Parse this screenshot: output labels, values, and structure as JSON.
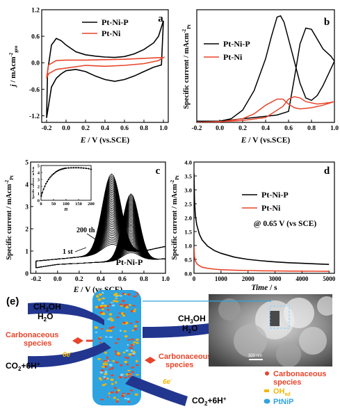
{
  "chart_data": [
    {
      "panel": "a",
      "type": "line",
      "xlabel_parts": [
        "E",
        " / V (vs.SCE)"
      ],
      "ylabel_parts": [
        "j",
        " / mAcm",
        "-2",
        "geo"
      ],
      "xlim": [
        -0.25,
        1.05
      ],
      "ylim": [
        -1.35,
        1.2
      ],
      "xticks": [
        "-0.2",
        "0.0",
        "0.2",
        "0.4",
        "0.6",
        "0.8",
        "1.0"
      ],
      "yticks": [
        "-1.2",
        "-0.6",
        "0.0",
        "0.6",
        "1.2"
      ],
      "ytick_values": [
        -1.2,
        -0.6,
        0.0,
        0.6,
        1.2
      ],
      "legend_position": "top-right",
      "series": [
        {
          "name": "Pt-Ni-P",
          "color": "#000000",
          "x": [
            -0.2,
            -0.19,
            -0.15,
            -0.1,
            -0.05,
            0.0,
            0.1,
            0.2,
            0.3,
            0.4,
            0.5,
            0.6,
            0.7,
            0.8,
            0.9,
            0.95,
            1.0,
            0.98,
            0.9,
            0.8,
            0.7,
            0.6,
            0.5,
            0.4,
            0.3,
            0.2,
            0.1,
            0.0,
            -0.05,
            -0.1,
            -0.15,
            -0.2
          ],
          "y": [
            -1.25,
            -0.2,
            0.4,
            0.55,
            0.5,
            0.4,
            0.25,
            0.18,
            0.15,
            0.13,
            0.12,
            0.14,
            0.2,
            0.3,
            0.45,
            0.6,
            0.95,
            -0.05,
            -0.1,
            -0.2,
            -0.3,
            -0.38,
            -0.42,
            -0.38,
            -0.3,
            -0.2,
            -0.15,
            -0.18,
            -0.25,
            -0.35,
            -0.55,
            -1.25
          ]
        },
        {
          "name": "Pt-Ni",
          "color": "#e8442a",
          "x": [
            -0.2,
            -0.18,
            -0.1,
            0.0,
            0.2,
            0.4,
            0.6,
            0.8,
            1.0,
            0.95,
            0.8,
            0.6,
            0.4,
            0.2,
            0.0,
            -0.1,
            -0.18,
            -0.2
          ],
          "y": [
            -0.35,
            -0.05,
            0.05,
            0.06,
            0.06,
            0.07,
            0.08,
            0.1,
            0.12,
            0.05,
            -0.02,
            -0.06,
            -0.08,
            -0.06,
            -0.12,
            -0.15,
            -0.25,
            -0.35
          ]
        }
      ]
    },
    {
      "panel": "b",
      "type": "line",
      "xlabel_parts": [
        "E",
        " / V (vs.SCE)"
      ],
      "ylabel_parts": [
        "Specific current / mAcm",
        "-2",
        "Pt"
      ],
      "xlim": [
        -0.2,
        1.0
      ],
      "ylim": [
        0,
        4.6
      ],
      "xticks": [
        "-0.2",
        "0.0",
        "0.2",
        "0.4",
        "0.6",
        "0.8",
        "1.0"
      ],
      "legend_position": "top-left",
      "series": [
        {
          "name": "Pt-Ni-P",
          "color": "#000000",
          "x": [
            -0.2,
            0.0,
            0.1,
            0.2,
            0.3,
            0.4,
            0.45,
            0.5,
            0.53,
            0.56,
            0.6,
            0.65,
            0.7,
            0.75,
            0.8,
            0.85,
            0.9,
            0.95,
            1.0,
            0.97,
            0.9,
            0.8,
            0.75,
            0.7,
            0.65,
            0.6,
            0.5,
            0.4,
            0.3,
            0.2,
            0.1,
            0.0,
            -0.1,
            -0.2
          ],
          "y": [
            0.05,
            0.05,
            0.15,
            0.5,
            1.3,
            2.6,
            3.5,
            4.3,
            4.35,
            4.1,
            3.4,
            2.5,
            1.6,
            1.0,
            0.9,
            1.1,
            1.5,
            2.0,
            2.5,
            2.7,
            3.0,
            3.8,
            3.85,
            3.2,
            1.8,
            0.45,
            0.3,
            0.25,
            0.2,
            0.15,
            0.1,
            0.05,
            0.05,
            0.05
          ]
        },
        {
          "name": "Pt-Ni",
          "color": "#e8442a",
          "x": [
            -0.2,
            0.0,
            0.2,
            0.3,
            0.4,
            0.5,
            0.55,
            0.6,
            0.65,
            0.7,
            0.8,
            0.9,
            1.0,
            0.95,
            0.85,
            0.75,
            0.7,
            0.65,
            0.6,
            0.55,
            0.4,
            0.2,
            0.0,
            -0.2
          ],
          "y": [
            0.0,
            0.02,
            0.15,
            0.35,
            0.7,
            0.95,
            0.95,
            0.75,
            0.6,
            0.55,
            0.6,
            0.7,
            0.85,
            0.8,
            0.75,
            0.85,
            1.0,
            1.05,
            0.95,
            0.65,
            0.2,
            0.08,
            0.03,
            0.0
          ]
        }
      ]
    },
    {
      "panel": "c",
      "type": "line",
      "xlabel_parts": [
        "E",
        " / V (vs.SCE)"
      ],
      "ylabel_parts": [
        "Specific current / mAcm",
        "-2",
        "Pt"
      ],
      "xlim": [
        -0.25,
        1.0
      ],
      "ylim": [
        0,
        5
      ],
      "xticks": [
        "-0.2",
        "0.0",
        "0.2",
        "0.4",
        "0.6",
        "0.8",
        "1.0"
      ],
      "yticks": [
        "0",
        "1",
        "2",
        "3",
        "4",
        "5"
      ],
      "label_text": "Pt-Ni-P",
      "annotations": [
        "200 th",
        "1 st"
      ],
      "inset": {
        "xlabel": "n",
        "ylabel": "Specific current / mAcm",
        "xlim": [
          0,
          200
        ],
        "ylim": [
          0,
          5
        ],
        "xticks": [
          "0",
          "50",
          "100",
          "150",
          "200"
        ],
        "yticks": [
          "0",
          "1",
          "2",
          "3",
          "4",
          "5"
        ],
        "x": [
          1,
          5,
          10,
          15,
          20,
          25,
          30,
          35,
          40,
          45,
          50,
          55,
          60,
          65,
          70,
          75,
          80,
          85,
          90,
          95,
          100,
          110,
          120,
          130,
          140,
          150,
          160,
          170,
          180,
          190,
          200
        ],
        "y": [
          0.6,
          1.1,
          1.6,
          2.0,
          2.4,
          2.7,
          3.0,
          3.25,
          3.45,
          3.65,
          3.8,
          3.95,
          4.1,
          4.2,
          4.3,
          4.38,
          4.45,
          4.5,
          4.55,
          4.6,
          4.62,
          4.65,
          4.67,
          4.68,
          4.68,
          4.68,
          4.66,
          4.63,
          4.6,
          4.55,
          4.45
        ]
      }
    },
    {
      "panel": "d",
      "type": "line",
      "xlabel_parts": [
        "Time",
        " / s"
      ],
      "ylabel_parts": [
        "Specific current / mAcm",
        "-2",
        "Pt"
      ],
      "xlim": [
        0,
        5200
      ],
      "ylim": [
        0,
        4.0
      ],
      "xticks": [
        "0",
        "1000",
        "2000",
        "3000",
        "4000",
        "5000"
      ],
      "yticks": [
        "0.0",
        "0.5",
        "1.0",
        "1.5",
        "2.0",
        "2.5",
        "3.0",
        "3.5",
        "4.0"
      ],
      "legend_position": "top-right",
      "condition_text": "@ 0.65 V (vs SCE)",
      "series": [
        {
          "name": "Pt-Ni-P",
          "color": "#000000",
          "x": [
            0,
            20,
            50,
            100,
            200,
            300,
            500,
            750,
            1000,
            1500,
            2000,
            2500,
            3000,
            3500,
            4000,
            4500,
            5000
          ],
          "y": [
            3.6,
            2.6,
            2.1,
            1.75,
            1.4,
            1.2,
            0.98,
            0.82,
            0.72,
            0.58,
            0.5,
            0.45,
            0.41,
            0.38,
            0.36,
            0.34,
            0.32
          ]
        },
        {
          "name": "Pt-Ni",
          "color": "#e8442a",
          "x": [
            0,
            20,
            50,
            100,
            200,
            300,
            500,
            750,
            1000,
            1500,
            2000,
            2500,
            3000,
            3500,
            4000,
            4500,
            5000
          ],
          "y": [
            0.95,
            0.6,
            0.45,
            0.35,
            0.27,
            0.22,
            0.18,
            0.15,
            0.13,
            0.11,
            0.1,
            0.09,
            0.085,
            0.08,
            0.078,
            0.075,
            0.07
          ]
        }
      ]
    }
  ],
  "panel_labels": {
    "a": "a",
    "b": "b",
    "c": "c",
    "d": "d",
    "e": "(e)"
  },
  "scheme": {
    "in_top": {
      "line1": "CH",
      "sub1": "3",
      "line1b": "OH",
      "line2": "H",
      "sub2": "2",
      "line2b": "O"
    },
    "carb_left": {
      "line1": "Carbonaceous",
      "line2": "species"
    },
    "electron_left": "6e",
    "out_left": {
      "text": "CO",
      "sub": "2",
      "rest": "+6H",
      "sup": "+"
    },
    "in_right": {
      "line1": "CH",
      "sub1": "3",
      "line1b": "OH",
      "line2": "H",
      "sub2": "2",
      "line2b": "O"
    },
    "carb_right": {
      "line1": "Carbonaceous",
      "line2": "species"
    },
    "electron_right": "6e",
    "out_right": {
      "text": "CO",
      "sub": "2",
      "rest": "+6H",
      "sup": "+"
    },
    "scale_bar": "300 nm",
    "legend": [
      {
        "label1": "Carbonaceous",
        "label2": "species",
        "color": "#e8442a"
      },
      {
        "label1": "OH",
        "sub": "ad",
        "color": "#f2b705"
      },
      {
        "label1": "PtNiP",
        "color": "#2fa3e0"
      }
    ]
  }
}
